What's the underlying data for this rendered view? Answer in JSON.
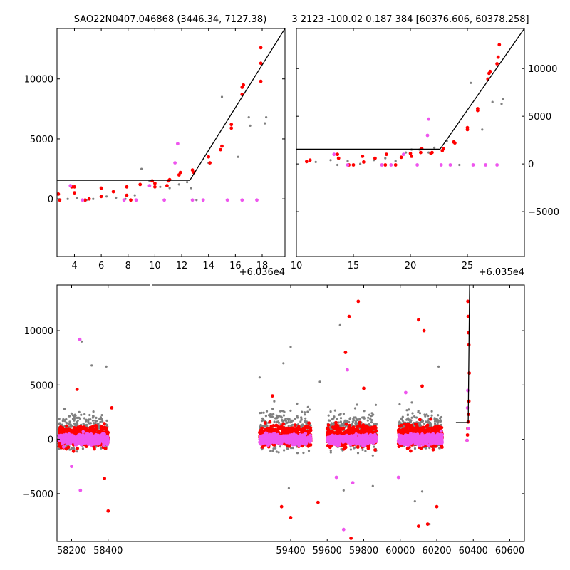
{
  "title_left": "SAO22N0407.046868 (3446.34, 7127.38)",
  "title_right": "3 2123 -100.02 0.187 384 [60376.606, 60378.258]",
  "colors": {
    "gray": "#808080",
    "red": "#ff0000",
    "magenta": "#ee55ee",
    "line": "#000000"
  },
  "chart_data": [
    {
      "id": "top-left",
      "type": "scatter",
      "title": "SAO22N0407.046868 (3446.34, 7127.38)",
      "x_offset_label": "+6.036e4",
      "xlim": [
        2.7,
        19.7
      ],
      "ylim": [
        -4800,
        14200
      ],
      "xticks": [
        4,
        6,
        8,
        10,
        12,
        14,
        16,
        18
      ],
      "xtick_labels": [
        "4",
        "6",
        "8",
        "10",
        "12",
        "14",
        "16",
        "18"
      ],
      "yticks": [
        0,
        5000,
        10000
      ],
      "ytick_labels": [
        "0",
        "5000",
        "10000"
      ],
      "model_line": [
        [
          2.7,
          1550
        ],
        [
          12.6,
          1550
        ],
        [
          19.7,
          14200
        ]
      ],
      "series": [
        {
          "color": "gray",
          "points": [
            [
              3.5,
              0
            ],
            [
              4.2,
              50
            ],
            [
              4.9,
              -100
            ],
            [
              5.4,
              0
            ],
            [
              6.4,
              200
            ],
            [
              7.1,
              100
            ],
            [
              7.8,
              0
            ],
            [
              8.5,
              300
            ],
            [
              9.0,
              2500
            ],
            [
              9.6,
              1500
            ],
            [
              10.4,
              1000
            ],
            [
              11.1,
              900
            ],
            [
              11.8,
              1200
            ],
            [
              12.4,
              1400
            ],
            [
              12.7,
              900
            ],
            [
              13.1,
              -100
            ],
            [
              14.0,
              3000
            ],
            [
              15.0,
              8500
            ],
            [
              16.2,
              3500
            ],
            [
              17.0,
              6800
            ],
            [
              17.1,
              6100
            ],
            [
              18.2,
              6300
            ],
            [
              18.3,
              6800
            ]
          ]
        },
        {
          "color": "red",
          "points": [
            [
              2.8,
              400
            ],
            [
              2.9,
              -100
            ],
            [
              3.8,
              1000
            ],
            [
              4.0,
              500
            ],
            [
              4.0,
              1000
            ],
            [
              4.8,
              -100
            ],
            [
              5.1,
              0
            ],
            [
              6.0,
              900
            ],
            [
              6.0,
              200
            ],
            [
              6.9,
              600
            ],
            [
              7.9,
              1000
            ],
            [
              7.9,
              300
            ],
            [
              8.2,
              -100
            ],
            [
              8.9,
              1200
            ],
            [
              9.8,
              1500
            ],
            [
              10.0,
              1000
            ],
            [
              10.0,
              1300
            ],
            [
              10.9,
              1100
            ],
            [
              11.0,
              1500
            ],
            [
              11.1,
              1600
            ],
            [
              11.8,
              2000
            ],
            [
              11.9,
              2200
            ],
            [
              12.8,
              2400
            ],
            [
              12.9,
              2200
            ],
            [
              14.0,
              3500
            ],
            [
              14.1,
              3000
            ],
            [
              14.9,
              4100
            ],
            [
              15.0,
              4400
            ],
            [
              15.7,
              5900
            ],
            [
              15.7,
              6200
            ],
            [
              16.5,
              8700
            ],
            [
              16.5,
              9300
            ],
            [
              16.6,
              9500
            ],
            [
              17.9,
              9800
            ],
            [
              17.9,
              11300
            ],
            [
              17.9,
              12600
            ]
          ]
        },
        {
          "color": "magenta",
          "points": [
            [
              3.7,
              1100
            ],
            [
              4.6,
              -100
            ],
            [
              7.7,
              -100
            ],
            [
              8.6,
              -100
            ],
            [
              9.6,
              1100
            ],
            [
              10.7,
              -100
            ],
            [
              11.5,
              3000
            ],
            [
              11.7,
              4600
            ],
            [
              12.8,
              -100
            ],
            [
              13.6,
              -100
            ],
            [
              15.4,
              -100
            ],
            [
              16.5,
              -100
            ],
            [
              17.6,
              -100
            ]
          ]
        }
      ]
    },
    {
      "id": "top-right",
      "type": "scatter",
      "x_offset_label": "+6.035e4",
      "xlim": [
        10,
        30
      ],
      "ylim": [
        -9700,
        14200
      ],
      "xticks": [
        10,
        15,
        20,
        25
      ],
      "xtick_labels": [
        "10",
        "15",
        "20",
        "25"
      ],
      "yticks": [
        -5000,
        0,
        5000,
        10000
      ],
      "ytick_labels": [
        "−5000",
        "0",
        "5000",
        "10000"
      ],
      "model_line": [
        [
          10,
          1550
        ],
        [
          22.6,
          1550
        ],
        [
          30,
          14200
        ]
      ],
      "series": [
        {
          "color": "gray",
          "points": [
            [
              11.7,
              200
            ],
            [
              13.0,
              400
            ],
            [
              13.6,
              -100
            ],
            [
              14.5,
              300
            ],
            [
              15.6,
              0
            ],
            [
              16.8,
              400
            ],
            [
              17.8,
              600
            ],
            [
              18.7,
              300
            ],
            [
              19.6,
              1200
            ],
            [
              20.1,
              1500
            ],
            [
              20.8,
              1500
            ],
            [
              21.6,
              1200
            ],
            [
              22.1,
              1700
            ],
            [
              23.2,
              2400
            ],
            [
              24.3,
              -100
            ],
            [
              25.3,
              8500
            ],
            [
              26.3,
              3600
            ],
            [
              27.0,
              9600
            ],
            [
              27.2,
              6500
            ],
            [
              28.0,
              6300
            ],
            [
              28.1,
              6800
            ]
          ]
        },
        {
          "color": "red",
          "points": [
            [
              10.9,
              250
            ],
            [
              11.2,
              400
            ],
            [
              13.6,
              1000
            ],
            [
              13.7,
              600
            ],
            [
              14.6,
              -100
            ],
            [
              15.0,
              -100
            ],
            [
              15.8,
              800
            ],
            [
              15.9,
              200
            ],
            [
              16.9,
              600
            ],
            [
              17.8,
              -100
            ],
            [
              17.9,
              1000
            ],
            [
              18.7,
              -100
            ],
            [
              19.2,
              700
            ],
            [
              20.0,
              1100
            ],
            [
              20.1,
              800
            ],
            [
              20.9,
              1200
            ],
            [
              21.0,
              1600
            ],
            [
              21.8,
              1100
            ],
            [
              21.9,
              1200
            ],
            [
              22.8,
              1400
            ],
            [
              22.9,
              1600
            ],
            [
              23.8,
              2300
            ],
            [
              23.9,
              2200
            ],
            [
              25.0,
              3600
            ],
            [
              25.0,
              3800
            ],
            [
              25.9,
              5600
            ],
            [
              25.9,
              5800
            ],
            [
              26.8,
              8900
            ],
            [
              26.9,
              9500
            ],
            [
              27.0,
              9700
            ],
            [
              27.6,
              10500
            ],
            [
              27.7,
              11200
            ],
            [
              27.8,
              12500
            ]
          ]
        },
        {
          "color": "magenta",
          "points": [
            [
              13.3,
              1000
            ],
            [
              14.5,
              -100
            ],
            [
              17.5,
              -100
            ],
            [
              18.3,
              -100
            ],
            [
              19.4,
              1000
            ],
            [
              20.6,
              -100
            ],
            [
              21.5,
              3000
            ],
            [
              21.6,
              4700
            ],
            [
              22.7,
              -100
            ],
            [
              23.5,
              -100
            ],
            [
              25.5,
              -100
            ],
            [
              26.6,
              -100
            ],
            [
              27.6,
              -100
            ]
          ]
        }
      ]
    },
    {
      "id": "bottom",
      "type": "scatter",
      "xlim": [
        58120,
        60680
      ],
      "ylim": [
        -9400,
        14200
      ],
      "xticks": [
        58200,
        58400,
        59400,
        59600,
        59800,
        60000,
        60200,
        60400,
        60600
      ],
      "xtick_labels": [
        "58200",
        "58400",
        "59400",
        "59600",
        "59800",
        "60000",
        "60200",
        "60400",
        "60600"
      ],
      "yticks": [
        -5000,
        0,
        5000,
        10000
      ],
      "ytick_labels": [
        "−5000",
        "0",
        "5000",
        "10000"
      ],
      "model_line": [
        [
          60305,
          1550
        ],
        [
          60372,
          1550
        ],
        [
          60380,
          14200
        ]
      ],
      "clusters": [
        {
          "xrange": [
            58130,
            58400
          ]
        },
        {
          "xrange": [
            59230,
            59510
          ]
        },
        {
          "xrange": [
            59600,
            59870
          ]
        },
        {
          "xrange": [
            59990,
            60230
          ]
        }
      ],
      "series": [
        {
          "color": "gray",
          "points": [
            [
              58255,
              9000
            ],
            [
              58310,
              6800
            ],
            [
              58390,
              6700
            ],
            [
              59400,
              8500
            ],
            [
              59360,
              7000
            ],
            [
              59560,
              5300
            ],
            [
              59670,
              10500
            ],
            [
              59690,
              -4700
            ],
            [
              59850,
              -4300
            ],
            [
              60120,
              -4800
            ],
            [
              60080,
              -5700
            ],
            [
              60160,
              -7800
            ],
            [
              60210,
              6700
            ],
            [
              59230,
              5700
            ],
            [
              59390,
              -4500
            ]
          ]
        },
        {
          "color": "red",
          "points": [
            [
              58400,
              -6600
            ],
            [
              58420,
              2900
            ],
            [
              58380,
              -3600
            ],
            [
              59350,
              -6200
            ],
            [
              59400,
              -7200
            ],
            [
              59550,
              -5800
            ],
            [
              59730,
              -9100
            ],
            [
              59770,
              12700
            ],
            [
              59720,
              11300
            ],
            [
              59700,
              8000
            ],
            [
              60100,
              11000
            ],
            [
              60130,
              10000
            ],
            [
              60100,
              -8000
            ],
            [
              60150,
              -7800
            ],
            [
              60200,
              -6200
            ],
            [
              58230,
              4600
            ],
            [
              59300,
              4000
            ],
            [
              59800,
              4700
            ],
            [
              60120,
              4900
            ],
            [
              60370,
              12700
            ],
            [
              60372,
              11300
            ],
            [
              60374,
              9800
            ],
            [
              60376,
              8700
            ],
            [
              60378,
              6100
            ],
            [
              60376,
              3500
            ],
            [
              60374,
              2300
            ],
            [
              60372,
              1600
            ],
            [
              60370,
              1000
            ],
            [
              60368,
              400
            ],
            [
              60366,
              -100
            ]
          ]
        },
        {
          "color": "magenta",
          "points": [
            [
              58245,
              9200
            ],
            [
              58248,
              -4700
            ],
            [
              58200,
              -2500
            ],
            [
              59690,
              -8300
            ],
            [
              59710,
              6400
            ],
            [
              59740,
              -4000
            ],
            [
              59650,
              -3500
            ],
            [
              60030,
              4300
            ],
            [
              59990,
              -3500
            ],
            [
              60366,
              -100
            ],
            [
              60368,
              2900
            ],
            [
              60370,
              4500
            ],
            [
              60372,
              1000
            ]
          ]
        }
      ]
    }
  ]
}
